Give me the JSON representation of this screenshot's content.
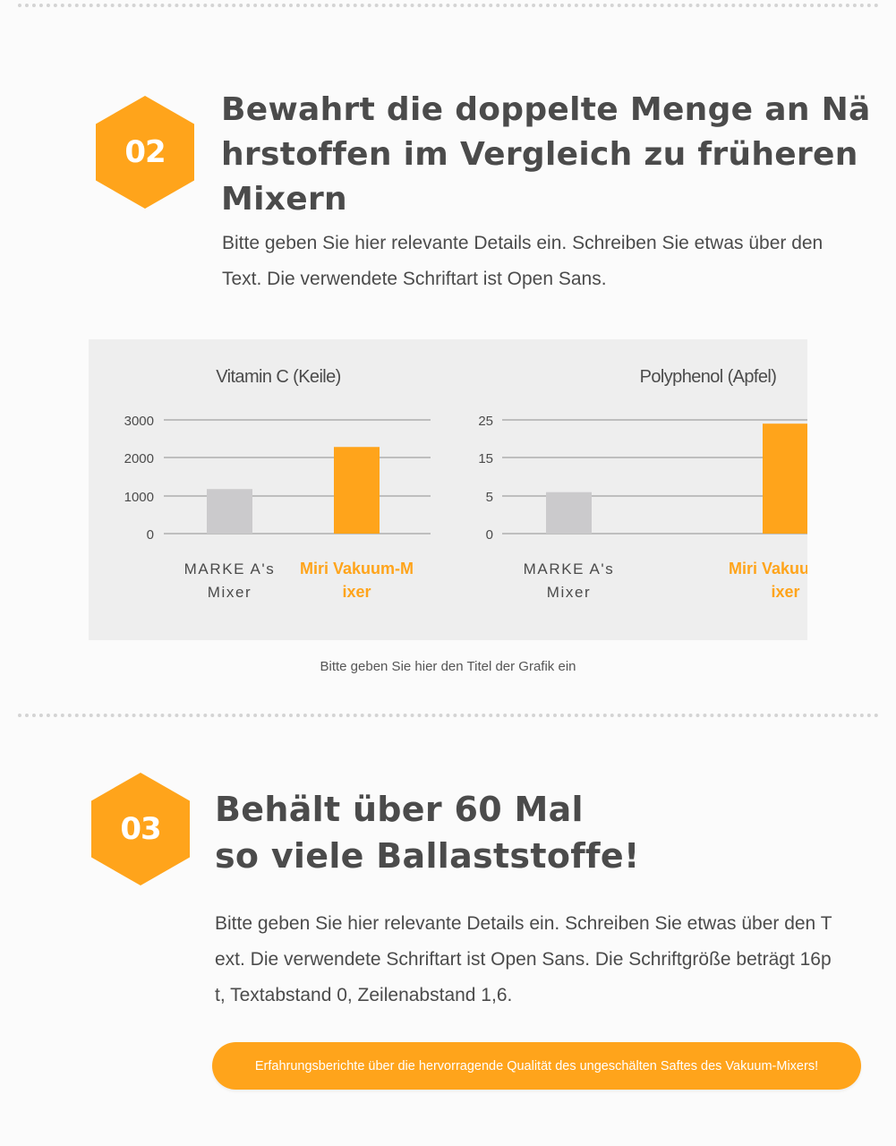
{
  "section2": {
    "number": "02",
    "title": "Bewahrt die doppelte Menge an Nährstoffen im Vergleich zu früheren Mixern",
    "body": "Bitte geben Sie hier relevante Details ein. Schreiben Sie etwas über den Text. Die verwendete Schriftart ist Open Sans.",
    "caption": "Bitte geben Sie hier den Titel der Grafik ein"
  },
  "section3": {
    "number": "03",
    "title_line1": "Behält über 60 Mal",
    "title_line2": "so viele Ballaststoffe!",
    "body": "Bitte geben Sie hier relevante Details ein. Schreiben Sie etwas über den Text. Die verwendete Schriftart ist Open Sans. Die Schriftgröße beträgt 16pt, Textabstand 0, Zeilenabstand 1,6.",
    "cta_label": "Erfahrungsberichte über die hervorragende Qualität des ungeschälten Saftes des Vakuum-Mixers!"
  },
  "colors": {
    "accent": "#ffa41b",
    "bar_gray": "#cbcacc",
    "text": "#4b4b4b",
    "panel": "#eeeeee"
  },
  "chart_data": [
    {
      "type": "bar",
      "title": "Vitamin C (Keile)",
      "categories": [
        "MARKE A's Mixer",
        "Miri Vakuum-Mixer"
      ],
      "category_lines": [
        [
          "MARKE A's",
          "Mixer"
        ],
        [
          "Miri Vakuum-M",
          "ixer"
        ]
      ],
      "values": [
        1180,
        2280
      ],
      "ticks": [
        "3000",
        "2000",
        "1000",
        "0"
      ],
      "tick_values": [
        3000,
        2000,
        1000,
        0
      ],
      "bar_colors": [
        "#cbcacc",
        "#ffa41b"
      ],
      "highlight": [
        false,
        true
      ]
    },
    {
      "type": "bar",
      "title": "Polyphenol (Apfel)",
      "categories": [
        "MARKE A's Mixer",
        "Miri Vakuum-Mixer"
      ],
      "category_lines": [
        [
          "MARKE A's",
          "Mixer"
        ],
        [
          "Miri Vakuum-M",
          "ixer"
        ]
      ],
      "values": [
        6,
        24
      ],
      "ticks": [
        "25",
        "15",
        "5",
        "0"
      ],
      "tick_values": [
        25,
        15,
        5,
        0
      ],
      "bar_colors": [
        "#cbcacc",
        "#ffa41b"
      ],
      "highlight": [
        false,
        true
      ]
    }
  ]
}
